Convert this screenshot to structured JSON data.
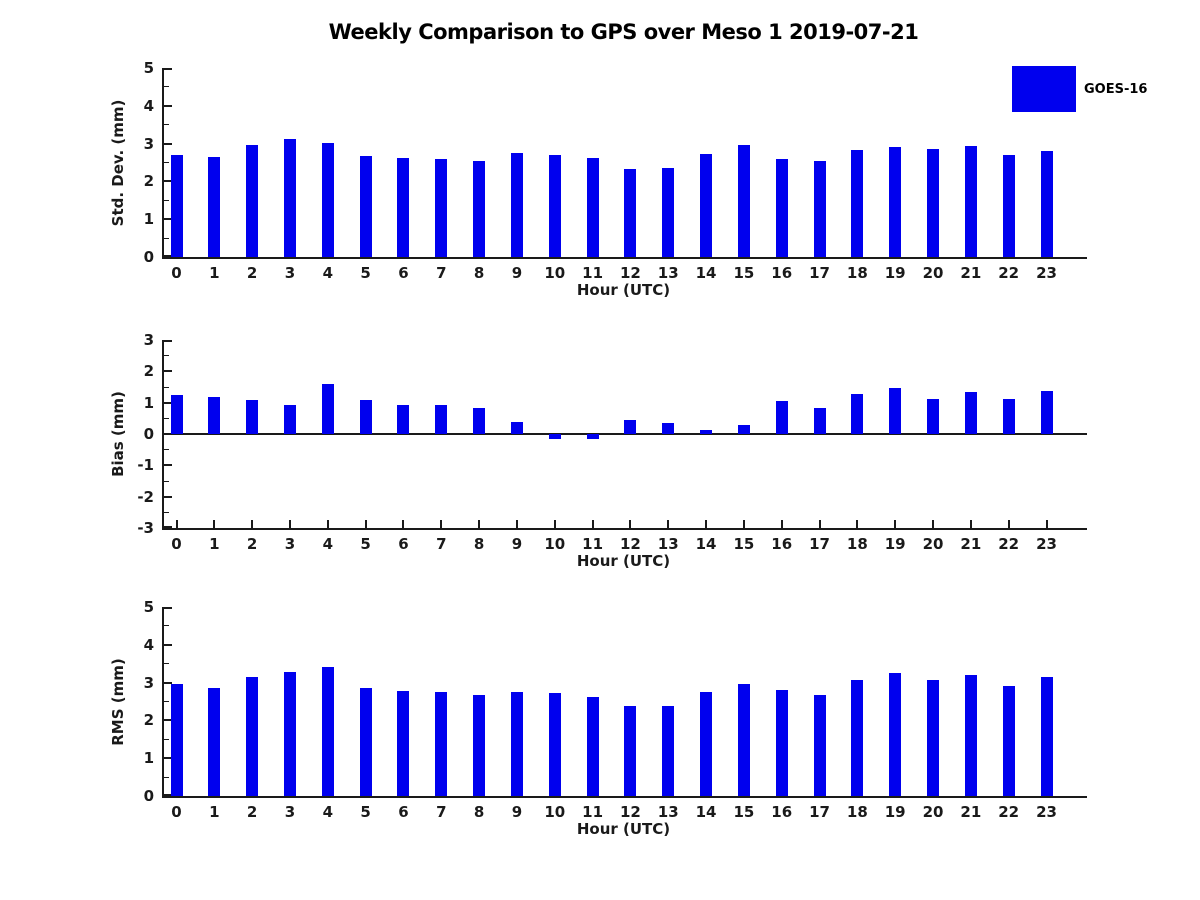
{
  "title": "Weekly Comparison to GPS over Meso 1 2019-07-21",
  "legend": {
    "label": "GOES-16",
    "color": "#0000ee"
  },
  "colors": {
    "bar": "#0000ee",
    "axis": "#1a1a1a"
  },
  "chart_data": [
    {
      "type": "bar",
      "title": "",
      "ylabel": "Std. Dev. (mm)",
      "xlabel": "Hour (UTC)",
      "series_name": "GOES-16",
      "categories": [
        "0",
        "1",
        "2",
        "3",
        "4",
        "5",
        "6",
        "7",
        "8",
        "9",
        "10",
        "11",
        "12",
        "13",
        "14",
        "15",
        "16",
        "17",
        "18",
        "19",
        "20",
        "21",
        "22",
        "23"
      ],
      "values": [
        2.7,
        2.64,
        2.95,
        3.12,
        3.02,
        2.66,
        2.63,
        2.6,
        2.55,
        2.74,
        2.71,
        2.61,
        2.33,
        2.36,
        2.73,
        2.95,
        2.59,
        2.54,
        2.84,
        2.92,
        2.86,
        2.93,
        2.7,
        2.81
      ],
      "ylim": [
        0,
        5
      ],
      "yticks": [
        0,
        1,
        2,
        3,
        4,
        5
      ],
      "minor_tick_step": 0.5,
      "grid": false,
      "legend_position": "upper right outside"
    },
    {
      "type": "bar",
      "title": "",
      "ylabel": "Bias (mm)",
      "xlabel": "Hour (UTC)",
      "series_name": "GOES-16",
      "categories": [
        "0",
        "1",
        "2",
        "3",
        "4",
        "5",
        "6",
        "7",
        "8",
        "9",
        "10",
        "11",
        "12",
        "13",
        "14",
        "15",
        "16",
        "17",
        "18",
        "19",
        "20",
        "21",
        "22",
        "23"
      ],
      "values": [
        1.25,
        1.18,
        1.1,
        0.93,
        1.58,
        1.1,
        0.93,
        0.93,
        0.83,
        0.38,
        -0.15,
        -0.15,
        0.45,
        0.35,
        0.12,
        0.28,
        1.05,
        0.82,
        1.28,
        1.47,
        1.13,
        1.33,
        1.13,
        1.38
      ],
      "ylim": [
        -3,
        3
      ],
      "yticks": [
        -3,
        -2,
        -1,
        0,
        1,
        2,
        3
      ],
      "minor_tick_step": 0.5,
      "grid": false,
      "zero_line": true
    },
    {
      "type": "bar",
      "title": "",
      "ylabel": "RMS (mm)",
      "xlabel": "Hour (UTC)",
      "series_name": "GOES-16",
      "categories": [
        "0",
        "1",
        "2",
        "3",
        "4",
        "5",
        "6",
        "7",
        "8",
        "9",
        "10",
        "11",
        "12",
        "13",
        "14",
        "15",
        "16",
        "17",
        "18",
        "19",
        "20",
        "21",
        "22",
        "23"
      ],
      "values": [
        2.95,
        2.87,
        3.15,
        3.28,
        3.4,
        2.87,
        2.78,
        2.75,
        2.67,
        2.76,
        2.72,
        2.62,
        2.38,
        2.38,
        2.75,
        2.95,
        2.8,
        2.67,
        3.08,
        3.26,
        3.08,
        3.19,
        2.9,
        3.14
      ],
      "ylim": [
        0,
        5
      ],
      "yticks": [
        0,
        1,
        2,
        3,
        4,
        5
      ],
      "minor_tick_step": 0.5,
      "grid": false
    }
  ]
}
